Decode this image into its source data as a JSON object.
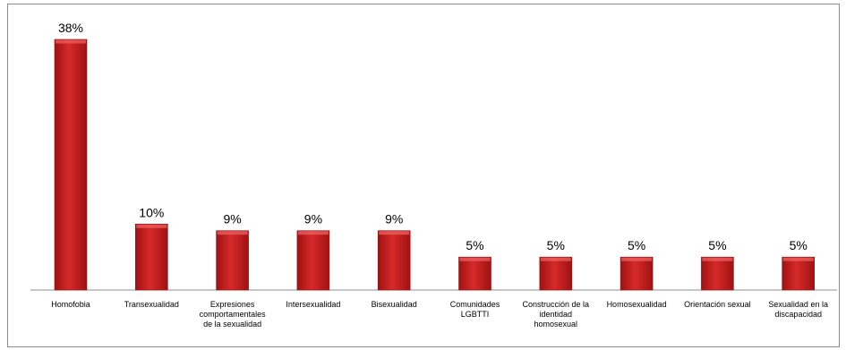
{
  "chart_data": {
    "type": "bar",
    "categories": [
      "Homofobia",
      "Transexualidad",
      "Expresiones comportamentales de la sexualidad",
      "Intersexualidad",
      "Bisexualidad",
      "Comunidades LGBTTI",
      "Construcción de la identidad homosexual",
      "Homosexualidad",
      "Orientación sexual",
      "Sexualidad en la discapacidad"
    ],
    "category_lines": [
      [
        "Homofobia"
      ],
      [
        "Transexualidad"
      ],
      [
        "Expresiones",
        "comportamentales",
        "de la sexualidad"
      ],
      [
        "Intersexualidad"
      ],
      [
        "Bisexualidad"
      ],
      [
        "Comunidades",
        "LGBTTI"
      ],
      [
        "Construcción de la",
        "identidad",
        "homosexual"
      ],
      [
        "Homosexualidad"
      ],
      [
        "Orientación sexual"
      ],
      [
        "Sexualidad en la",
        "discapacidad"
      ]
    ],
    "values": [
      38,
      10,
      9,
      9,
      9,
      5,
      5,
      5,
      5,
      5
    ],
    "value_labels": [
      "38%",
      "10%",
      "9%",
      "9%",
      "9%",
      "5%",
      "5%",
      "5%",
      "5%",
      "5%"
    ],
    "title": "",
    "xlabel": "",
    "ylabel": "",
    "ylim": [
      0,
      40
    ],
    "grid": false,
    "legend": "none",
    "colors": {
      "bar_dark": "#9e1212",
      "bar_mid": "#d62a2a",
      "bar_light": "#ef6060",
      "axis": "#8c8c8c"
    }
  }
}
